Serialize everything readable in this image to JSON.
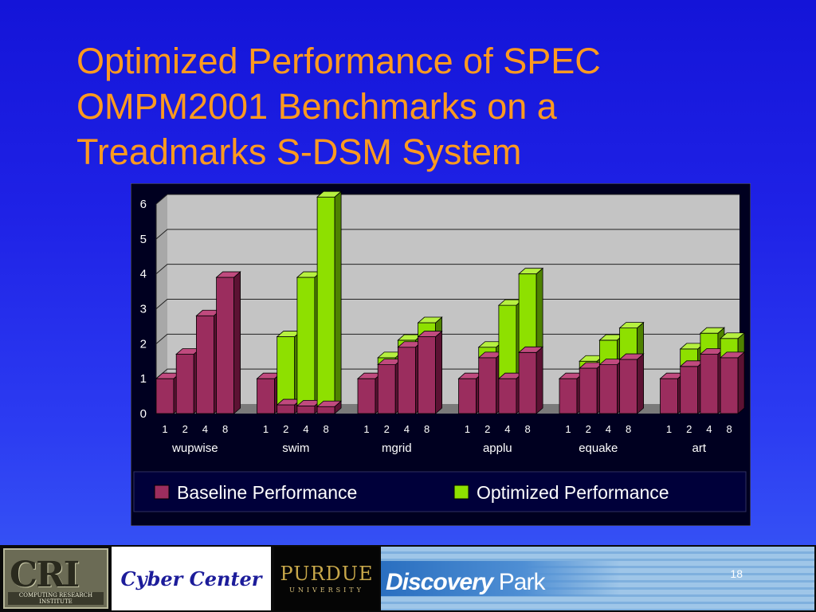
{
  "slide": {
    "title_lines": [
      "Optimized Performance of SPEC",
      "OMPM2001 Benchmarks on a",
      "Treadmarks S-DSM System"
    ],
    "page_number": "18"
  },
  "footer": {
    "cri_letters": "CRI",
    "cri_subtitle": "COMPUTING RESEARCH INSTITUTE",
    "cyber_center": "Cyber Center",
    "purdue": "PURDUE",
    "purdue_sub": "UNIVERSITY",
    "discovery": "Discovery",
    "park": "Park"
  },
  "chart_data": {
    "type": "bar",
    "style": "3d-stacked",
    "ylim": [
      0,
      6
    ],
    "yticks": [
      "0",
      "1",
      "2",
      "3",
      "4",
      "5",
      "6"
    ],
    "grid": true,
    "groups": [
      "wupwise",
      "swim",
      "mgrid",
      "applu",
      "equake",
      "art"
    ],
    "processors": [
      "1",
      "2",
      "4",
      "8"
    ],
    "series": [
      {
        "name": "Baseline Performance",
        "color": "#9b2d5e",
        "values": [
          [
            1.0,
            1.7,
            2.8,
            3.9
          ],
          [
            1.0,
            0.25,
            0.22,
            0.2
          ],
          [
            1.0,
            1.4,
            1.9,
            2.2
          ],
          [
            1.0,
            1.6,
            1.0,
            1.75
          ],
          [
            1.0,
            1.3,
            1.4,
            1.55
          ],
          [
            1.0,
            1.35,
            1.7,
            1.6
          ]
        ]
      },
      {
        "name": "Optimized Performance",
        "color": "#8ee000",
        "values": [
          [
            1.0,
            1.7,
            2.8,
            3.9
          ],
          [
            1.0,
            2.2,
            3.9,
            6.2
          ],
          [
            1.0,
            1.6,
            2.1,
            2.6
          ],
          [
            1.0,
            1.9,
            3.1,
            4.0
          ],
          [
            1.0,
            1.5,
            2.1,
            2.45
          ],
          [
            1.0,
            1.85,
            2.3,
            2.15
          ]
        ]
      }
    ],
    "legend": "bottom"
  }
}
